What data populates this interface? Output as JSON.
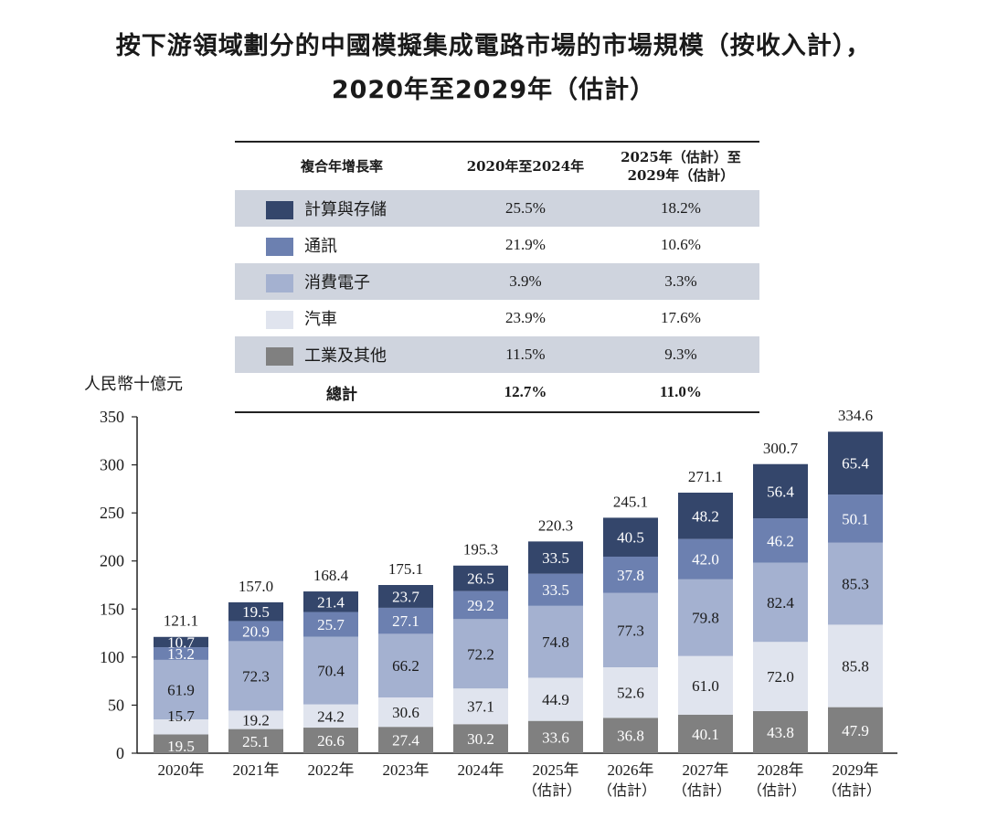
{
  "title_line1": "按下游領域劃分的中國模擬集成電路市場的市場規模（按收入計），",
  "title_line2": "2020年至2029年（估計）",
  "table": {
    "header": {
      "col1": "複合年增長率",
      "col2": "2020年至2024年",
      "col3_line1": "2025年（估計）至",
      "col3_line2": "2029年（估計）"
    },
    "rows": [
      {
        "name": "計算與存儲",
        "cagr1": "25.5%",
        "cagr2": "18.2%",
        "color": "#34466b"
      },
      {
        "name": "通訊",
        "cagr1": "21.9%",
        "cagr2": "10.6%",
        "color": "#6c80b0"
      },
      {
        "name": "消費電子",
        "cagr1": "3.9%",
        "cagr2": "3.3%",
        "color": "#a4b1d0"
      },
      {
        "name": "汽車",
        "cagr1": "23.9%",
        "cagr2": "17.6%",
        "color": "#e0e4ee"
      },
      {
        "name": "工業及其他",
        "cagr1": "11.5%",
        "cagr2": "9.3%",
        "color": "#808080"
      }
    ],
    "total": {
      "name": "總計",
      "cagr1": "12.7%",
      "cagr2": "11.0%"
    }
  },
  "chart_data": {
    "type": "bar",
    "stacked": true,
    "ylabel": "人民幣十億元",
    "ylim": [
      0,
      350
    ],
    "yticks": [
      0,
      50,
      100,
      150,
      200,
      250,
      300,
      350
    ],
    "categories": [
      [
        "2020年",
        ""
      ],
      [
        "2021年",
        ""
      ],
      [
        "2022年",
        ""
      ],
      [
        "2023年",
        ""
      ],
      [
        "2024年",
        ""
      ],
      [
        "2025年",
        "（估計）"
      ],
      [
        "2026年",
        "（估計）"
      ],
      [
        "2027年",
        "（估計）"
      ],
      [
        "2028年",
        "（估計）"
      ],
      [
        "2029年",
        "（估計）"
      ]
    ],
    "series": [
      {
        "name": "工業及其他",
        "color": "#808080",
        "label_color": "#ffffff",
        "values": [
          19.5,
          25.1,
          26.6,
          27.4,
          30.2,
          33.6,
          36.8,
          40.1,
          43.8,
          47.9
        ]
      },
      {
        "name": "汽車",
        "color": "#e0e4ee",
        "label_color": "#1a1a1a",
        "values": [
          15.7,
          19.2,
          24.2,
          30.6,
          37.1,
          44.9,
          52.6,
          61.0,
          72.0,
          85.8
        ]
      },
      {
        "name": "消費電子",
        "color": "#a4b1d0",
        "label_color": "#1a1a1a",
        "values": [
          61.9,
          72.3,
          70.4,
          66.2,
          72.2,
          74.8,
          77.3,
          79.8,
          82.4,
          85.3
        ]
      },
      {
        "name": "通訊",
        "color": "#6c80b0",
        "label_color": "#ffffff",
        "values": [
          13.2,
          20.9,
          25.7,
          27.1,
          29.2,
          33.5,
          37.8,
          42.0,
          46.2,
          50.1
        ]
      },
      {
        "name": "計算與存儲",
        "color": "#34466b",
        "label_color": "#ffffff",
        "values": [
          10.7,
          19.5,
          21.4,
          23.7,
          26.5,
          33.5,
          40.5,
          48.2,
          56.4,
          65.4
        ]
      }
    ],
    "totals": [
      121.1,
      157.0,
      168.4,
      175.1,
      195.3,
      220.3,
      245.1,
      271.1,
      300.7,
      334.6
    ]
  }
}
